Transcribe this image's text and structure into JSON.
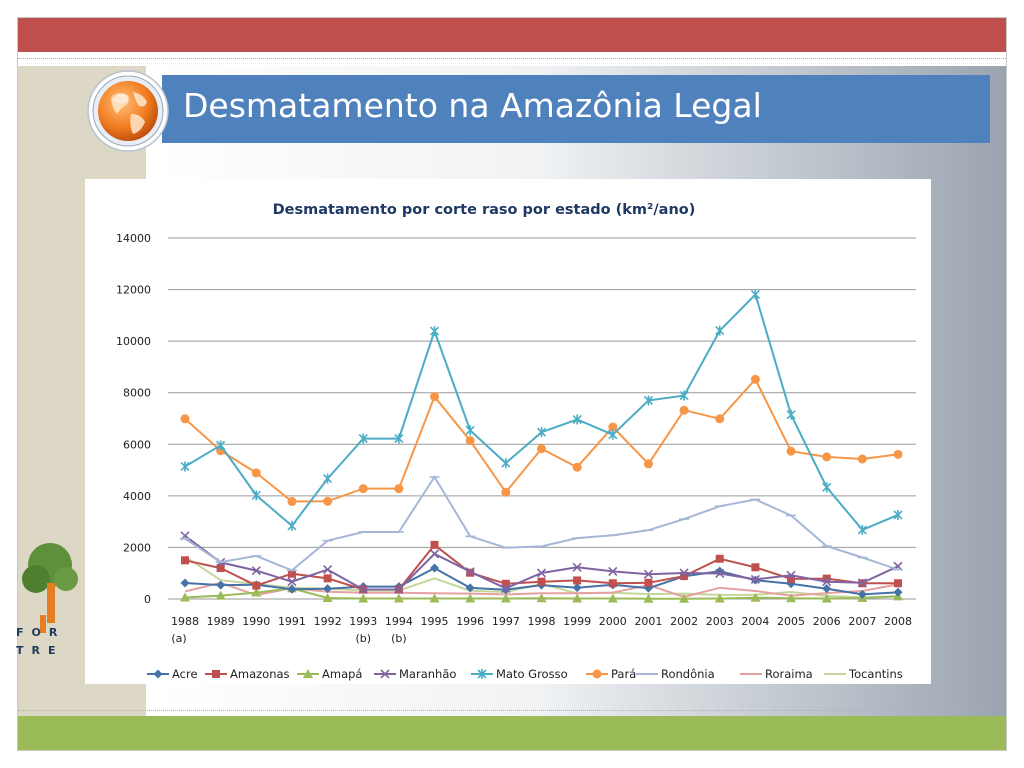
{
  "slide": {
    "title": "Desmatamento na Amazônia Legal",
    "logo_text_1": "FOR",
    "logo_text_2": "TRE",
    "colors": {
      "top_bar": "#c0504d",
      "bottom_bar": "#9bbb59",
      "title_banner": "#4f81bd",
      "side_panel": "#ddd8c5"
    },
    "icons": [
      "globe-icon",
      "tree-logo-icon"
    ]
  },
  "chart_data": {
    "type": "line",
    "title": "Desmatamento por corte raso por estado (km²/ano)",
    "xlabel": "",
    "ylabel": "",
    "ylim": [
      0,
      14000
    ],
    "yticks": [
      0,
      2000,
      4000,
      6000,
      8000,
      10000,
      12000,
      14000
    ],
    "grid": true,
    "legend_position": "bottom",
    "categories": [
      "1988",
      "1989",
      "1990",
      "1991",
      "1992",
      "1993",
      "1994",
      "1995",
      "1996",
      "1997",
      "1998",
      "1999",
      "2000",
      "2001",
      "2002",
      "2003",
      "2004",
      "2005",
      "2006",
      "2007",
      "2008"
    ],
    "category_notes": {
      "1988": "(a)",
      "1993": "(b)",
      "1994": "(b)"
    },
    "series": [
      {
        "name": "Acre",
        "color": "#4572a7",
        "marker": "diamond",
        "values": [
          620,
          540,
          550,
          380,
          400,
          480,
          480,
          1200,
          430,
          360,
          540,
          440,
          550,
          420,
          880,
          1080,
          730,
          590,
          400,
          180,
          260
        ]
      },
      {
        "name": "Amazonas",
        "color": "#c0504d",
        "marker": "square",
        "values": [
          1500,
          1200,
          520,
          980,
          800,
          370,
          370,
          2100,
          1020,
          590,
          670,
          720,
          610,
          630,
          890,
          1560,
          1230,
          780,
          790,
          610,
          610
        ]
      },
      {
        "name": "Amapá",
        "color": "#9bbb59",
        "marker": "triangle",
        "values": [
          60,
          130,
          250,
          410,
          40,
          20,
          20,
          20,
          20,
          20,
          30,
          20,
          20,
          10,
          10,
          20,
          50,
          30,
          20,
          40,
          100
        ]
      },
      {
        "name": "Maranhão",
        "color": "#8064a2",
        "marker": "x",
        "values": [
          2450,
          1420,
          1100,
          670,
          1140,
          370,
          370,
          1750,
          1060,
          410,
          1010,
          1230,
          1070,
          960,
          1010,
          990,
          760,
          920,
          670,
          630,
          1270
        ]
      },
      {
        "name": "Mato Grosso",
        "color": "#4bacc6",
        "marker": "star",
        "values": [
          5140,
          5960,
          4020,
          2840,
          4670,
          6220,
          6220,
          10390,
          6540,
          5270,
          6470,
          6960,
          6370,
          7700,
          7890,
          10410,
          11810,
          7150,
          4330,
          2680,
          3260
        ]
      },
      {
        "name": "Pará",
        "color": "#f79646",
        "marker": "circle",
        "values": [
          6990,
          5750,
          4890,
          3780,
          3790,
          4280,
          4280,
          7850,
          6140,
          4140,
          5830,
          5110,
          6670,
          5240,
          7320,
          6990,
          8520,
          5730,
          5510,
          5430,
          5610
        ]
      },
      {
        "name": "Rondônia",
        "color": "#a5b6d8",
        "marker": "plus",
        "values": [
          2340,
          1430,
          1670,
          1110,
          2260,
          2600,
          2600,
          4730,
          2430,
          1990,
          2040,
          2360,
          2470,
          2670,
          3100,
          3600,
          3860,
          3240,
          2050,
          1610,
          1140
        ]
      },
      {
        "name": "Roraima",
        "color": "#e6a0a0",
        "marker": "none",
        "values": [
          290,
          630,
          150,
          420,
          280,
          240,
          240,
          220,
          210,
          180,
          220,
          220,
          250,
          540,
          80,
          440,
          310,
          130,
          230,
          310,
          570
        ]
      },
      {
        "name": "Tocantins",
        "color": "#c4d79b",
        "marker": "none",
        "values": [
          1650,
          730,
          580,
          440,
          400,
          330,
          330,
          800,
          320,
          270,
          580,
          220,
          240,
          190,
          210,
          160,
          160,
          270,
          120,
          60,
          110
        ]
      }
    ]
  }
}
